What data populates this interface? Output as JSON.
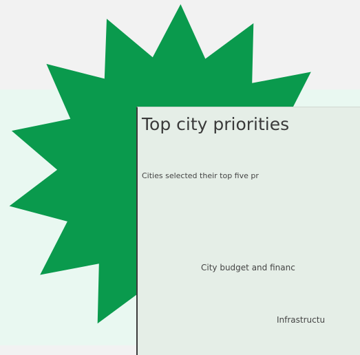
{
  "card": {
    "title": "Top city priorities",
    "subtitle": "Cities selected their top five pr",
    "rows": [
      "City budget and financ",
      "Infrastructu"
    ]
  }
}
